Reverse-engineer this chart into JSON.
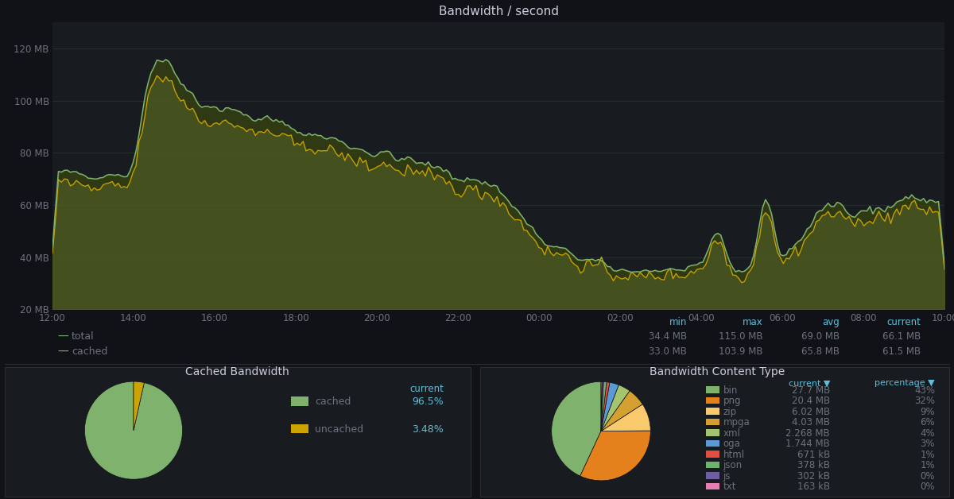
{
  "bg_color": "#111217",
  "panel_bg": "#181b1f",
  "panel_border": "#2a2d32",
  "title": "Bandwidth / second",
  "title_color": "#ccccdc",
  "grid_color": "#293133",
  "axis_label_color": "#6c7280",
  "time_labels": [
    "12:00",
    "14:00",
    "16:00",
    "18:00",
    "20:00",
    "22:00",
    "00:00",
    "02:00",
    "04:00",
    "06:00",
    "08:00",
    "10:00"
  ],
  "y_labels": [
    "20 MB",
    "40 MB",
    "60 MB",
    "80 MB",
    "100 MB",
    "120 MB"
  ],
  "y_values": [
    20,
    40,
    60,
    80,
    100,
    120
  ],
  "series_total_color": "#7eb26d",
  "series_cached_color": "#cca300",
  "fill_color": "#4d5a1e",
  "legend_total_label": "total",
  "legend_cached_label": "cached",
  "stats_header_color": "#5bc0de",
  "stats_headers": [
    "min",
    "max",
    "avg",
    "current"
  ],
  "stats_total": [
    "34.4 MB",
    "115.0 MB",
    "69.0 MB",
    "66.1 MB"
  ],
  "stats_cached": [
    "33.0 MB",
    "103.9 MB",
    "65.8 MB",
    "61.5 MB"
  ],
  "pie1_title": "Cached Bandwidth",
  "pie1_title_color": "#ccccdc",
  "pie1_values": [
    96.5,
    3.48
  ],
  "pie1_colors": [
    "#7eb26d",
    "#cca300"
  ],
  "pie1_labels": [
    "cached",
    "uncached"
  ],
  "pie1_current": [
    "96.5%",
    "3.48%"
  ],
  "pie2_title": "Bandwidth Content Type",
  "pie2_title_color": "#ccccdc",
  "pie2_labels": [
    "bin",
    "png",
    "zip",
    "mpga",
    "xml",
    "oga",
    "html",
    "json",
    "js",
    "txt"
  ],
  "pie2_values": [
    43,
    32,
    9,
    6,
    4,
    3,
    1,
    1,
    0.5,
    0.3
  ],
  "pie2_colors": [
    "#7eb26d",
    "#e5811c",
    "#f9c96d",
    "#d4a030",
    "#a5c46f",
    "#5b9bd5",
    "#e24d42",
    "#6db36d",
    "#6e5fa3",
    "#e67fb1"
  ],
  "pie2_current": [
    "27.7 MB",
    "20.4 MB",
    "6.02 MB",
    "4.03 MB",
    "2.268 MB",
    "1.744 MB",
    "671 kB",
    "378 kB",
    "302 kB",
    "163 kB"
  ],
  "pie2_percentage": [
    "43%",
    "32%",
    "9%",
    "6%",
    "4%",
    "3%",
    "1%",
    "1%",
    "0%",
    "0%"
  ]
}
